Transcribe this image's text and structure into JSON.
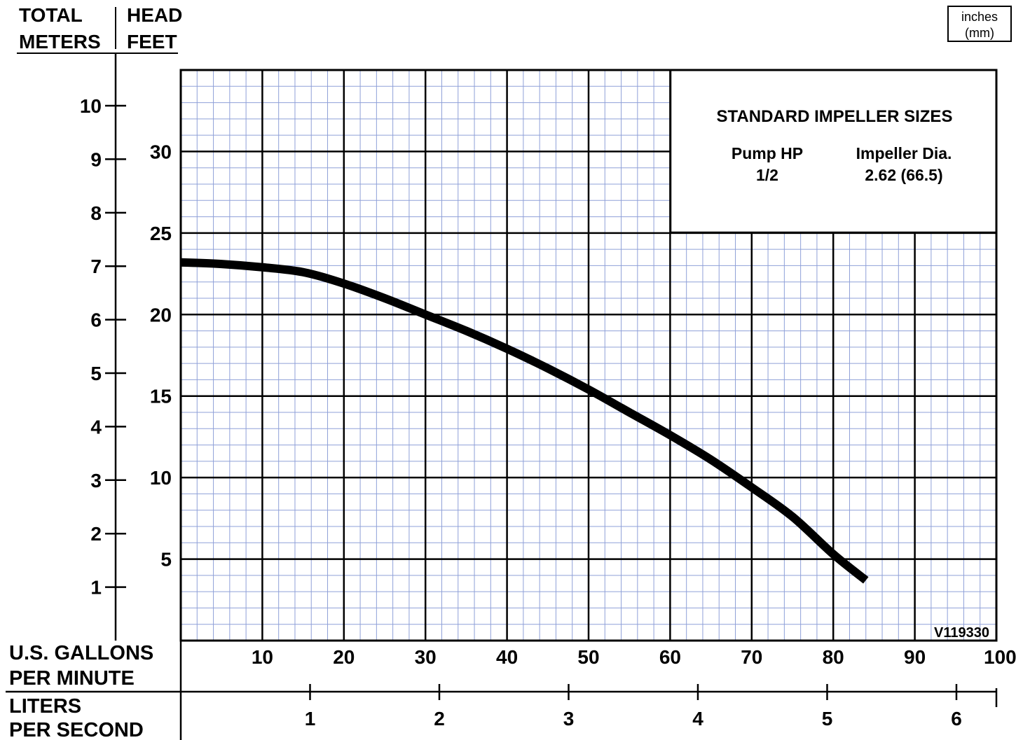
{
  "header": {
    "meters_line1": "TOTAL",
    "meters_line2": "METERS",
    "feet_line1": "HEAD",
    "feet_line2": "FEET"
  },
  "units_box": {
    "line1": "inches",
    "line2": "(mm)"
  },
  "impeller_box": {
    "title": "STANDARD IMPELLER SIZES",
    "col1_header": "Pump HP",
    "col1_value": "1/2",
    "col2_header": "Impeller Dia.",
    "col2_value": "2.62 (66.5)"
  },
  "gpm_axis": {
    "label_line1": "U.S. GALLONS",
    "label_line2": "PER MINUTE"
  },
  "lps_axis": {
    "label_line1": "LITERS",
    "label_line2": "PER SECOND"
  },
  "drawing_number": "V119330",
  "colors": {
    "minor_grid": "#8fa0d8",
    "major_grid": "#000000",
    "curve": "#000000"
  },
  "chart_data": {
    "type": "line",
    "title": "",
    "xlabel": "U.S. GALLONS PER MINUTE",
    "ylabel": "TOTAL HEAD FEET",
    "xlim": [
      0,
      100
    ],
    "ylim": [
      0,
      35
    ],
    "grid": true,
    "x_ticks": [
      10,
      20,
      30,
      40,
      50,
      60,
      70,
      80,
      90,
      100
    ],
    "y_ticks_feet": [
      5,
      10,
      15,
      20,
      25,
      30
    ],
    "y_ticks_meters": [
      1,
      2,
      3,
      4,
      5,
      6,
      7,
      8,
      9,
      10
    ],
    "secondary_x_ticks_lps": [
      1,
      2,
      3,
      4,
      5,
      6
    ],
    "series": [
      {
        "x": [
          0,
          5,
          10,
          15,
          20,
          25,
          30,
          35,
          40,
          45,
          50,
          55,
          60,
          65,
          70,
          75,
          80,
          84
        ],
        "y": [
          23.2,
          23.1,
          22.9,
          22.6,
          21.9,
          21.0,
          20.0,
          19.0,
          17.9,
          16.7,
          15.4,
          14.0,
          12.6,
          11.1,
          9.4,
          7.6,
          5.3,
          3.7
        ]
      }
    ]
  }
}
